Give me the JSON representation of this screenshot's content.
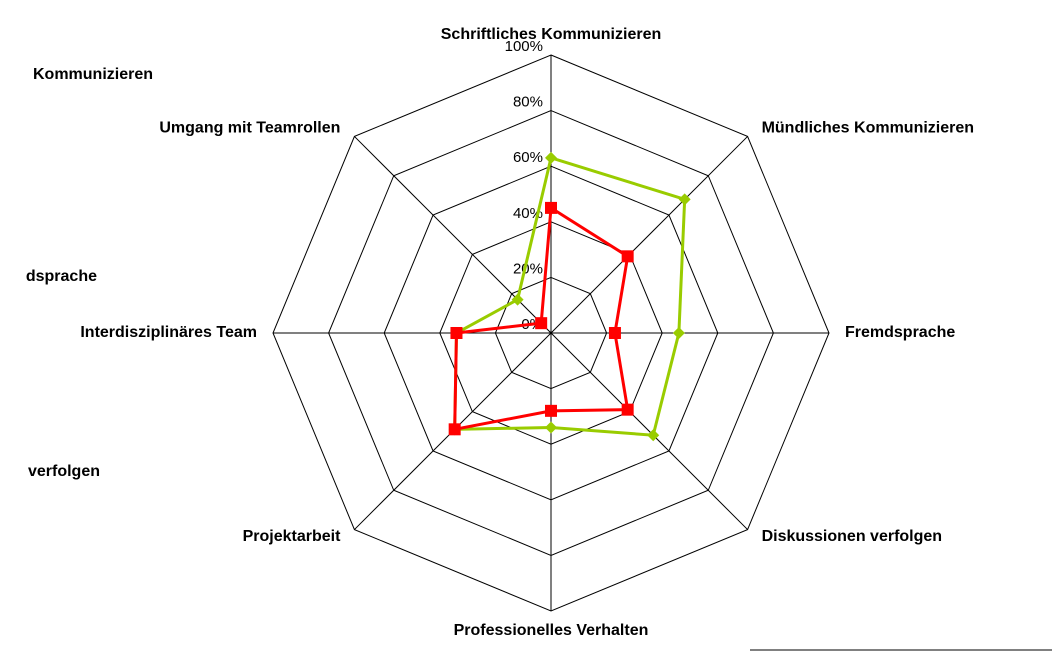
{
  "chart_data": {
    "type": "radar",
    "categories": [
      "Schriftliches Kommunizieren",
      "Mündliches Kommunizieren",
      "Fremdsprache",
      "Diskussionen verfolgen",
      "Professionelles Verhalten",
      "Projektarbeit",
      "Interdisziplinäres Team",
      "Umgang mit Teamrollen"
    ],
    "series": [
      {
        "color": "#99cc00",
        "marker": "diamond",
        "values": [
          63,
          68,
          46,
          52,
          34,
          49,
          34,
          17
        ]
      },
      {
        "color": "#ff0000",
        "marker": "square",
        "values": [
          45,
          39,
          23,
          39,
          28,
          49,
          34,
          5
        ]
      }
    ],
    "ylim": [
      0,
      100
    ],
    "yticks": [
      {
        "value": 0,
        "label": "0%"
      },
      {
        "value": 20,
        "label": "20%"
      },
      {
        "value": 40,
        "label": "40%"
      },
      {
        "value": 60,
        "label": "60%"
      },
      {
        "value": 80,
        "label": "80%"
      },
      {
        "value": 100,
        "label": "100%"
      }
    ],
    "grid": true,
    "annotations": [
      "Kommunizieren",
      "dsprache",
      "verfolgen"
    ]
  }
}
